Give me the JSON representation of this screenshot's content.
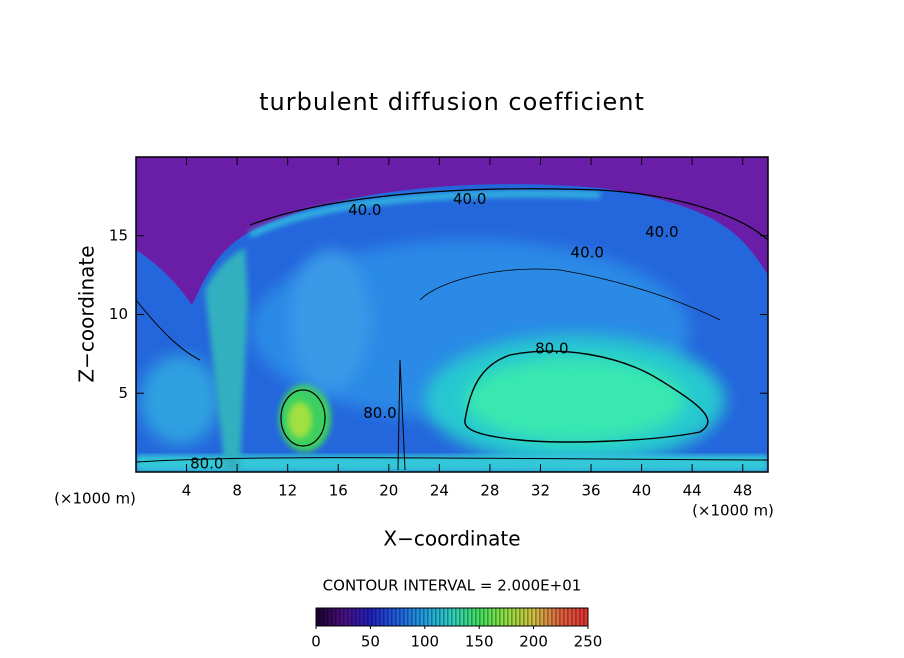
{
  "chart_data": {
    "type": "contour",
    "title": "turbulent diffusion coefficient",
    "x_label": "X−coordinate",
    "y_label": "Z−coordinate",
    "x_unit": "(×1000 m)",
    "y_unit": "(×1000 m)",
    "xlim": [
      0,
      50
    ],
    "xticks": [
      4,
      8,
      12,
      16,
      20,
      24,
      28,
      32,
      36,
      40,
      44,
      48
    ],
    "ylim": [
      0,
      20
    ],
    "yticks": [
      5,
      10,
      15
    ],
    "contour_interval": "CONTOUR INTERVAL = 2.000E+01",
    "contour_labels": [
      {
        "label": "40.0",
        "x": 18.1,
        "y": 16.6
      },
      {
        "label": "40.0",
        "x": 26.4,
        "y": 17.3
      },
      {
        "label": "40.0",
        "x": 41.6,
        "y": 15.2
      },
      {
        "label": "40.0",
        "x": 35.7,
        "y": 13.9
      },
      {
        "label": "80.0",
        "x": 32.9,
        "y": 7.8
      },
      {
        "label": "80.0",
        "x": 19.3,
        "y": 3.7
      },
      {
        "label": "80.0",
        "x": 5.6,
        "y": 0.5
      }
    ],
    "colorbar": {
      "clim": [
        0,
        250
      ],
      "ticks": [
        0,
        50,
        100,
        150,
        200,
        250
      ],
      "colormap": [
        "#1a0030",
        "#4a1080",
        "#2020c0",
        "#2060e0",
        "#20a0e0",
        "#30d0c0",
        "#40e060",
        "#90e040",
        "#d0c040",
        "#e06040",
        "#e03030"
      ]
    }
  }
}
